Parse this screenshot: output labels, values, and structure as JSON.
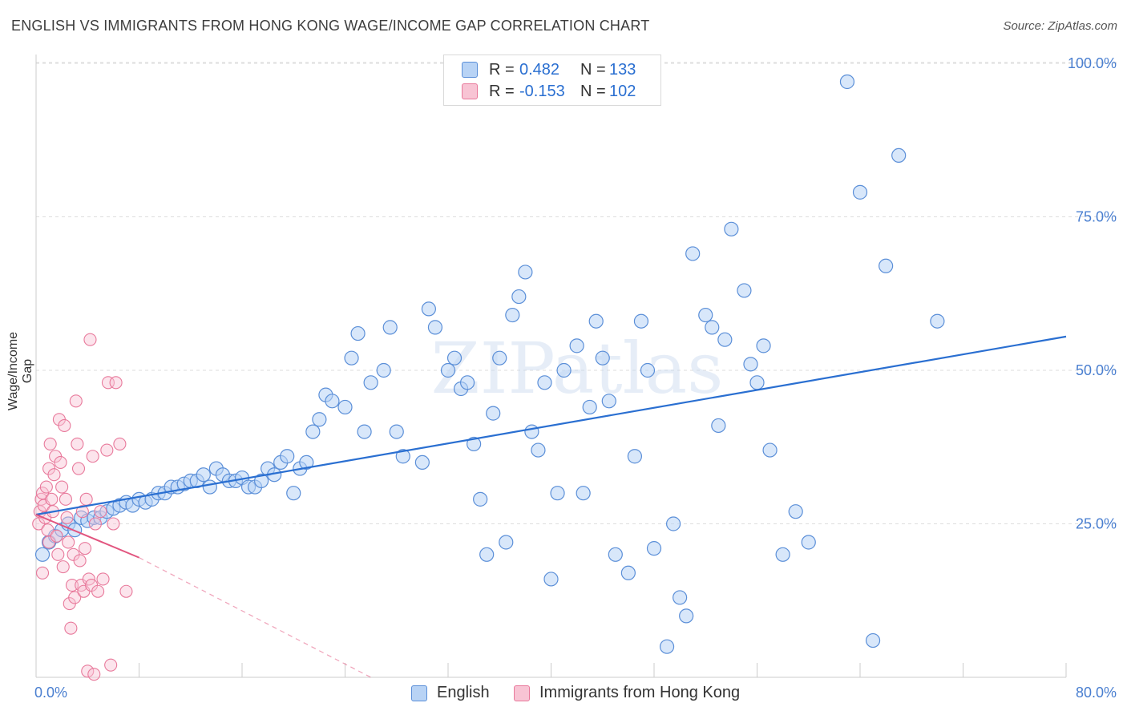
{
  "header": {
    "title": "ENGLISH VS IMMIGRANTS FROM HONG KONG WAGE/INCOME GAP CORRELATION CHART",
    "source": "Source: ZipAtlas.com"
  },
  "legend": {
    "r_label": "R =",
    "n_label": "N =",
    "series": [
      {
        "r": "0.482",
        "n": "133",
        "fill": "#b8d3f5",
        "stroke": "#5b8fd8"
      },
      {
        "r": "-0.153",
        "n": "102",
        "fill": "#f8c4d4",
        "stroke": "#e8799b"
      }
    ]
  },
  "bottom_legend": [
    "English",
    "Immigrants from Hong Kong"
  ],
  "watermark": "ZIPatlas",
  "colors": {
    "english_fill": "#b8d3f5",
    "english_stroke": "#5b8fd8",
    "english_line": "#2a6fd1",
    "hk_fill": "#f8c4d4",
    "hk_stroke": "#e8799b",
    "hk_line": "#e2557f",
    "tick_text": "#4a7fd0",
    "grid": "#dddddd"
  },
  "chart_data": {
    "type": "scatter",
    "title": "ENGLISH VS IMMIGRANTS FROM HONG KONG WAGE/INCOME GAP CORRELATION CHART",
    "xlabel": "",
    "ylabel": "Wage/Income Gap",
    "xlim": [
      0,
      80
    ],
    "ylim": [
      0,
      102
    ],
    "x_tick_labels": [
      "0.0%",
      "80.0%"
    ],
    "y_ticks": [
      25,
      50,
      75,
      100
    ],
    "y_tick_labels": [
      "25.0%",
      "50.0%",
      "75.0%",
      "100.0%"
    ],
    "grid": true,
    "legend_position": "top-center",
    "series": [
      {
        "name": "English",
        "r": 0.482,
        "n": 133,
        "trend": {
          "x": [
            0,
            80
          ],
          "y": [
            26.5,
            55.5
          ],
          "dashed_beyond": null
        },
        "points": [
          [
            0.5,
            20
          ],
          [
            1,
            22
          ],
          [
            1.5,
            23
          ],
          [
            2,
            24
          ],
          [
            2.5,
            25
          ],
          [
            3,
            24
          ],
          [
            3.5,
            26
          ],
          [
            4,
            25.5
          ],
          [
            4.5,
            26
          ],
          [
            5,
            26
          ],
          [
            5.5,
            27
          ],
          [
            6,
            27.5
          ],
          [
            6.5,
            28
          ],
          [
            7,
            28.5
          ],
          [
            7.5,
            28
          ],
          [
            8,
            29
          ],
          [
            8.5,
            28.5
          ],
          [
            9,
            29
          ],
          [
            9.5,
            30
          ],
          [
            10,
            30
          ],
          [
            10.5,
            31
          ],
          [
            11,
            31
          ],
          [
            11.5,
            31.5
          ],
          [
            12,
            32
          ],
          [
            12.5,
            32
          ],
          [
            13,
            33
          ],
          [
            13.5,
            31
          ],
          [
            14,
            34
          ],
          [
            14.5,
            33
          ],
          [
            15,
            32
          ],
          [
            15.5,
            32
          ],
          [
            16,
            32.5
          ],
          [
            16.5,
            31
          ],
          [
            17,
            31
          ],
          [
            17.5,
            32
          ],
          [
            18,
            34
          ],
          [
            18.5,
            33
          ],
          [
            19,
            35
          ],
          [
            19.5,
            36
          ],
          [
            20,
            30
          ],
          [
            20.5,
            34
          ],
          [
            21,
            35
          ],
          [
            21.5,
            40
          ],
          [
            22,
            42
          ],
          [
            22.5,
            46
          ],
          [
            23,
            45
          ],
          [
            24,
            44
          ],
          [
            24.5,
            52
          ],
          [
            25,
            56
          ],
          [
            25.5,
            40
          ],
          [
            26,
            48
          ],
          [
            27,
            50
          ],
          [
            27.5,
            57
          ],
          [
            28,
            40
          ],
          [
            28.5,
            36
          ],
          [
            30,
            35
          ],
          [
            30.5,
            60
          ],
          [
            31,
            57
          ],
          [
            32,
            50
          ],
          [
            32.5,
            52
          ],
          [
            33,
            47
          ],
          [
            33.5,
            48
          ],
          [
            34,
            38
          ],
          [
            34.5,
            29
          ],
          [
            35,
            20
          ],
          [
            35.5,
            43
          ],
          [
            36,
            52
          ],
          [
            36.5,
            22
          ],
          [
            37,
            59
          ],
          [
            37.5,
            62
          ],
          [
            38,
            66
          ],
          [
            38.5,
            40
          ],
          [
            39,
            37
          ],
          [
            39.5,
            48
          ],
          [
            40,
            16
          ],
          [
            40.5,
            30
          ],
          [
            41,
            50
          ],
          [
            42,
            54
          ],
          [
            42.5,
            30
          ],
          [
            43,
            44
          ],
          [
            43.5,
            58
          ],
          [
            44,
            52
          ],
          [
            44.5,
            45
          ],
          [
            45,
            20
          ],
          [
            46,
            17
          ],
          [
            46.5,
            36
          ],
          [
            47,
            58
          ],
          [
            47.5,
            50
          ],
          [
            48,
            21
          ],
          [
            49,
            5
          ],
          [
            49.5,
            25
          ],
          [
            50,
            13
          ],
          [
            50.5,
            10
          ],
          [
            51,
            69
          ],
          [
            52,
            59
          ],
          [
            52.5,
            57
          ],
          [
            53,
            41
          ],
          [
            53.5,
            55
          ],
          [
            54,
            73
          ],
          [
            55,
            63
          ],
          [
            55.5,
            51
          ],
          [
            56,
            48
          ],
          [
            56.5,
            54
          ],
          [
            57,
            37
          ],
          [
            58,
            20
          ],
          [
            59,
            27
          ],
          [
            60,
            22
          ],
          [
            63,
            97
          ],
          [
            64,
            79
          ],
          [
            65,
            6
          ],
          [
            66,
            67
          ],
          [
            67,
            85
          ],
          [
            70,
            58
          ]
        ],
        "points_note": "major visible points"
      },
      {
        "name": "Immigrants from Hong Kong",
        "r": -0.153,
        "n": 102,
        "trend": {
          "x": [
            0,
            8
          ],
          "y": [
            26.5,
            19.5
          ],
          "dashed_x": [
            8,
            26
          ],
          "dashed_y": [
            19.5,
            0
          ]
        },
        "points": [
          [
            0.2,
            25
          ],
          [
            0.3,
            27
          ],
          [
            0.4,
            29
          ],
          [
            0.5,
            30
          ],
          [
            0.5,
            17
          ],
          [
            0.6,
            28
          ],
          [
            0.7,
            26
          ],
          [
            0.8,
            31
          ],
          [
            0.9,
            24
          ],
          [
            1,
            34
          ],
          [
            1,
            22
          ],
          [
            1.1,
            38
          ],
          [
            1.2,
            29
          ],
          [
            1.3,
            27
          ],
          [
            1.4,
            33
          ],
          [
            1.5,
            36
          ],
          [
            1.6,
            23
          ],
          [
            1.7,
            20
          ],
          [
            1.8,
            42
          ],
          [
            1.9,
            35
          ],
          [
            2,
            31
          ],
          [
            2.1,
            18
          ],
          [
            2.2,
            41
          ],
          [
            2.3,
            29
          ],
          [
            2.4,
            26
          ],
          [
            2.5,
            22
          ],
          [
            2.6,
            12
          ],
          [
            2.7,
            8
          ],
          [
            2.8,
            15
          ],
          [
            2.9,
            20
          ],
          [
            3,
            13
          ],
          [
            3.1,
            45
          ],
          [
            3.2,
            38
          ],
          [
            3.3,
            34
          ],
          [
            3.4,
            19
          ],
          [
            3.5,
            15
          ],
          [
            3.6,
            27
          ],
          [
            3.7,
            14
          ],
          [
            3.8,
            21
          ],
          [
            3.9,
            29
          ],
          [
            4,
            1
          ],
          [
            4.1,
            16
          ],
          [
            4.2,
            55
          ],
          [
            4.3,
            15
          ],
          [
            4.4,
            36
          ],
          [
            4.5,
            0.5
          ],
          [
            4.6,
            25
          ],
          [
            4.8,
            14
          ],
          [
            5,
            27
          ],
          [
            5.2,
            16
          ],
          [
            5.5,
            37
          ],
          [
            5.6,
            48
          ],
          [
            5.8,
            2
          ],
          [
            6,
            25
          ],
          [
            6.2,
            48
          ],
          [
            6.5,
            38
          ],
          [
            7,
            14
          ]
        ],
        "points_note": "major visible points"
      }
    ]
  }
}
